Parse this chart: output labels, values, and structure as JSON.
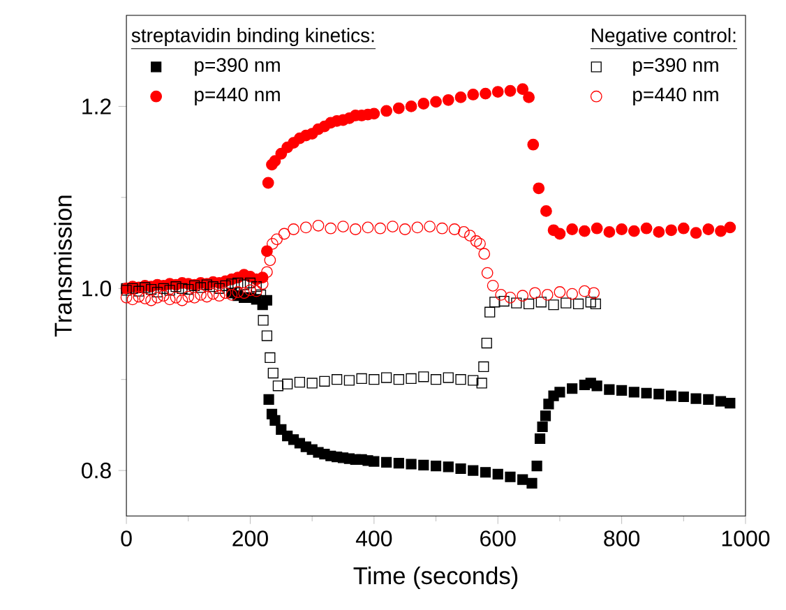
{
  "chart_data": {
    "type": "scatter",
    "xlabel": "Time (seconds)",
    "ylabel": "Transmission",
    "xlim": [
      0,
      1000
    ],
    "ylim": [
      0.75,
      1.3
    ],
    "xticks": [
      0,
      200,
      400,
      600,
      800,
      1000
    ],
    "yticks": [
      {
        "value": 0.8,
        "label": "0.8"
      },
      {
        "value": 1.0,
        "label": "1.0"
      },
      {
        "value": 1.2,
        "label": "1.2"
      }
    ],
    "grid": false,
    "legend": "top",
    "annotations": [
      "streptavidin binding kinetics:",
      "Negative control:"
    ],
    "series": [
      {
        "name": "p=390 nm",
        "color": "#000000",
        "marker": "square",
        "x": [
          0,
          10,
          20,
          30,
          40,
          50,
          60,
          70,
          80,
          90,
          100,
          110,
          120,
          130,
          140,
          150,
          160,
          170,
          180,
          190,
          200,
          210,
          220,
          227,
          230,
          235,
          240,
          250,
          260,
          270,
          280,
          290,
          300,
          310,
          320,
          330,
          340,
          350,
          360,
          370,
          380,
          390,
          400,
          420,
          440,
          460,
          480,
          500,
          520,
          540,
          560,
          580,
          600,
          620,
          640,
          655,
          663,
          668,
          672,
          677,
          682,
          690,
          700,
          720,
          740,
          750,
          760,
          780,
          800,
          820,
          840,
          860,
          880,
          900,
          920,
          940,
          960,
          975
        ],
        "values": [
          1.0,
          null,
          null,
          null,
          null,
          null,
          null,
          null,
          null,
          null,
          null,
          null,
          null,
          null,
          null,
          null,
          null,
          0.995,
          0.992,
          0.99,
          0.99,
          0.988,
          0.982,
          0.987,
          0.878,
          0.862,
          0.855,
          0.845,
          0.838,
          0.834,
          0.83,
          0.826,
          0.823,
          0.82,
          0.818,
          0.816,
          0.815,
          0.814,
          0.813,
          0.812,
          0.812,
          0.811,
          0.81,
          0.809,
          0.808,
          0.807,
          0.806,
          0.805,
          0.804,
          0.802,
          0.8,
          0.798,
          0.796,
          0.793,
          0.79,
          0.786,
          0.805,
          0.835,
          0.848,
          0.86,
          0.873,
          0.882,
          0.886,
          0.89,
          0.894,
          0.896,
          0.893,
          0.889,
          0.888,
          0.886,
          0.885,
          0.884,
          0.882,
          0.881,
          0.879,
          0.878,
          0.876,
          0.874
        ]
      },
      {
        "name": "p=440 nm",
        "color": "#ff0000",
        "marker": "circle",
        "x": [
          0,
          10,
          20,
          30,
          40,
          50,
          60,
          70,
          80,
          90,
          100,
          110,
          120,
          130,
          140,
          150,
          160,
          170,
          180,
          190,
          200,
          210,
          220,
          227,
          229,
          235,
          240,
          250,
          260,
          270,
          280,
          290,
          300,
          310,
          320,
          330,
          340,
          350,
          360,
          370,
          380,
          390,
          400,
          420,
          440,
          460,
          480,
          500,
          520,
          540,
          560,
          580,
          600,
          620,
          640,
          650,
          657,
          666,
          678,
          690,
          700,
          720,
          740,
          760,
          780,
          800,
          820,
          840,
          860,
          880,
          900,
          920,
          940,
          960,
          975
        ],
        "values": [
          1.0,
          1.002,
          1.001,
          1.003,
          1.002,
          1.004,
          1.003,
          1.005,
          1.004,
          1.006,
          1.005,
          1.004,
          1.006,
          1.005,
          1.007,
          1.006,
          1.008,
          1.01,
          1.012,
          1.015,
          1.013,
          1.01,
          1.012,
          1.041,
          1.116,
          1.136,
          1.14,
          1.148,
          1.155,
          1.16,
          1.165,
          1.168,
          1.17,
          1.175,
          1.178,
          1.182,
          1.184,
          1.185,
          1.187,
          1.19,
          1.19,
          1.191,
          1.192,
          1.195,
          1.198,
          1.2,
          1.203,
          1.205,
          1.207,
          1.21,
          1.213,
          1.214,
          1.216,
          1.217,
          1.219,
          1.21,
          1.158,
          1.11,
          1.085,
          1.064,
          1.06,
          1.065,
          1.063,
          1.066,
          1.062,
          1.065,
          1.063,
          1.066,
          1.062,
          1.064,
          1.066,
          1.061,
          1.065,
          1.063,
          1.067
        ]
      },
      {
        "name": "p=390 nm",
        "color": "#000000",
        "marker": "square",
        "x": [
          0,
          10,
          20,
          30,
          40,
          50,
          60,
          70,
          80,
          90,
          100,
          110,
          120,
          130,
          140,
          150,
          160,
          170,
          180,
          190,
          200,
          210,
          217,
          221,
          227,
          232,
          237,
          245,
          260,
          280,
          300,
          320,
          340,
          360,
          380,
          400,
          420,
          440,
          460,
          480,
          500,
          520,
          540,
          560,
          574,
          577,
          582,
          587,
          595,
          610,
          630,
          650,
          670,
          690,
          710,
          730,
          750,
          758
        ],
        "values": [
          0.998,
          1.0,
          0.997,
          1.001,
          0.999,
          0.996,
          1.0,
          0.998,
          1.002,
          1.0,
          0.999,
          1.003,
          1.001,
          1.004,
          1.002,
          1.0,
          1.003,
          1.005,
          1.006,
          1.004,
          1.006,
          1.002,
          0.993,
          0.965,
          0.948,
          0.924,
          0.907,
          0.893,
          0.895,
          0.897,
          0.896,
          0.898,
          0.9,
          0.899,
          0.901,
          0.9,
          0.902,
          0.9,
          0.901,
          0.903,
          0.9,
          0.902,
          0.9,
          0.899,
          0.896,
          0.914,
          0.94,
          0.974,
          0.985,
          0.986,
          0.984,
          0.983,
          0.985,
          0.982,
          0.984,
          0.983,
          0.985,
          0.983
        ]
      },
      {
        "name": "p=440 nm",
        "color": "#ff0000",
        "marker": "circle",
        "x": [
          0,
          10,
          20,
          30,
          40,
          50,
          60,
          70,
          80,
          90,
          100,
          110,
          120,
          130,
          140,
          150,
          160,
          170,
          180,
          190,
          200,
          210,
          220,
          227,
          232,
          236,
          243,
          255,
          270,
          290,
          310,
          330,
          350,
          370,
          390,
          410,
          430,
          450,
          470,
          490,
          510,
          530,
          545,
          555,
          565,
          571,
          578,
          583,
          592,
          605,
          620,
          640,
          660,
          680,
          700,
          720,
          740,
          755
        ],
        "values": [
          0.99,
          0.988,
          0.991,
          0.989,
          0.987,
          0.99,
          0.992,
          0.988,
          0.99,
          0.987,
          0.991,
          0.99,
          0.993,
          0.991,
          0.994,
          0.992,
          0.995,
          0.993,
          0.996,
          0.995,
          0.998,
          0.997,
          1.005,
          1.018,
          1.031,
          1.049,
          1.054,
          1.06,
          1.065,
          1.067,
          1.069,
          1.066,
          1.068,
          1.065,
          1.067,
          1.066,
          1.068,
          1.065,
          1.067,
          1.068,
          1.066,
          1.065,
          1.062,
          1.058,
          1.052,
          1.049,
          1.038,
          1.017,
          1.003,
          0.993,
          0.99,
          0.992,
          0.995,
          0.993,
          0.996,
          0.994,
          0.997,
          0.995
        ]
      }
    ]
  }
}
